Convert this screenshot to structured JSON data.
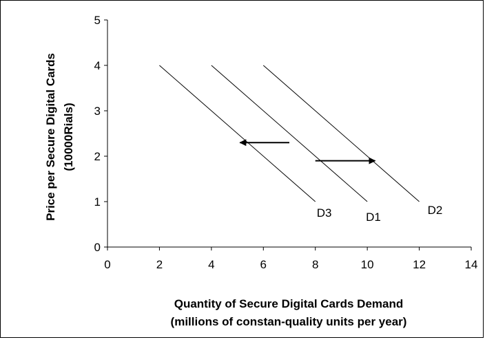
{
  "chart_data": {
    "type": "line",
    "xlabel_line1": "Quantity of Secure Digital Cards Demand",
    "xlabel_line2": "(millions of constan-quality units per year)",
    "ylabel_line1": "Price per Secure Digital Cards",
    "ylabel_line2": "(10000Rials)",
    "xlim": [
      0,
      14
    ],
    "ylim": [
      0,
      5
    ],
    "xticks": [
      0,
      2,
      4,
      6,
      8,
      10,
      12,
      14
    ],
    "yticks": [
      0,
      1,
      2,
      3,
      4,
      5
    ],
    "series": [
      {
        "name": "D3",
        "points": [
          [
            2,
            4
          ],
          [
            8,
            1
          ]
        ]
      },
      {
        "name": "D1",
        "points": [
          [
            4,
            4
          ],
          [
            10,
            1
          ]
        ]
      },
      {
        "name": "D2",
        "points": [
          [
            6,
            4
          ],
          [
            12,
            1
          ]
        ]
      }
    ],
    "arrows": [
      {
        "from": [
          7,
          2.3
        ],
        "to": [
          5.1,
          2.3
        ]
      },
      {
        "from": [
          8,
          1.9
        ],
        "to": [
          10.3,
          1.9
        ]
      }
    ],
    "grid": false,
    "line_color": "#000000"
  }
}
